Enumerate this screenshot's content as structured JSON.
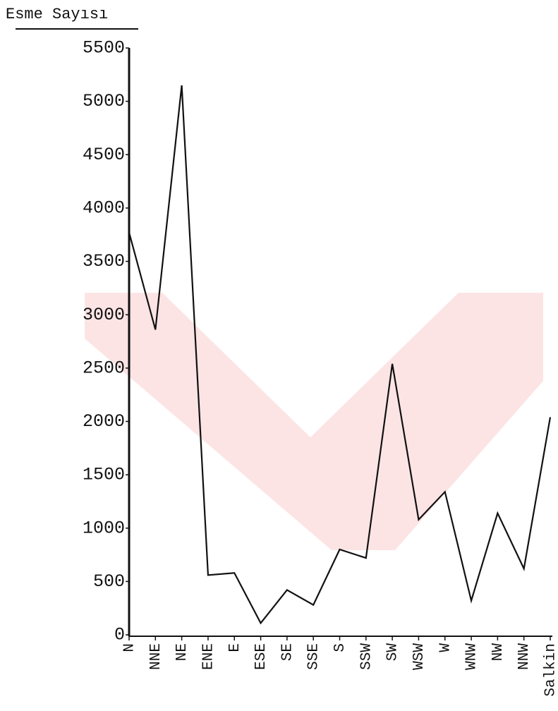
{
  "chart_data": {
    "type": "line",
    "y_label": "Esme Sayısı",
    "categories": [
      "N",
      "NNE",
      "NE",
      "ENE",
      "E",
      "ESE",
      "SE",
      "SSE",
      "S",
      "SSW",
      "SW",
      "WSW",
      "W",
      "WNW",
      "NW",
      "NNW",
      "Salkin"
    ],
    "values": [
      3770,
      2860,
      5150,
      560,
      580,
      110,
      420,
      280,
      800,
      720,
      2540,
      1080,
      1340,
      320,
      1140,
      620,
      2040
    ],
    "color": "#111111",
    "ylim": [
      0,
      5500
    ],
    "yticks": [
      0,
      500,
      1000,
      1500,
      2000,
      2500,
      3000,
      3500,
      4000,
      4500,
      5000,
      5500
    ],
    "grid": false
  }
}
